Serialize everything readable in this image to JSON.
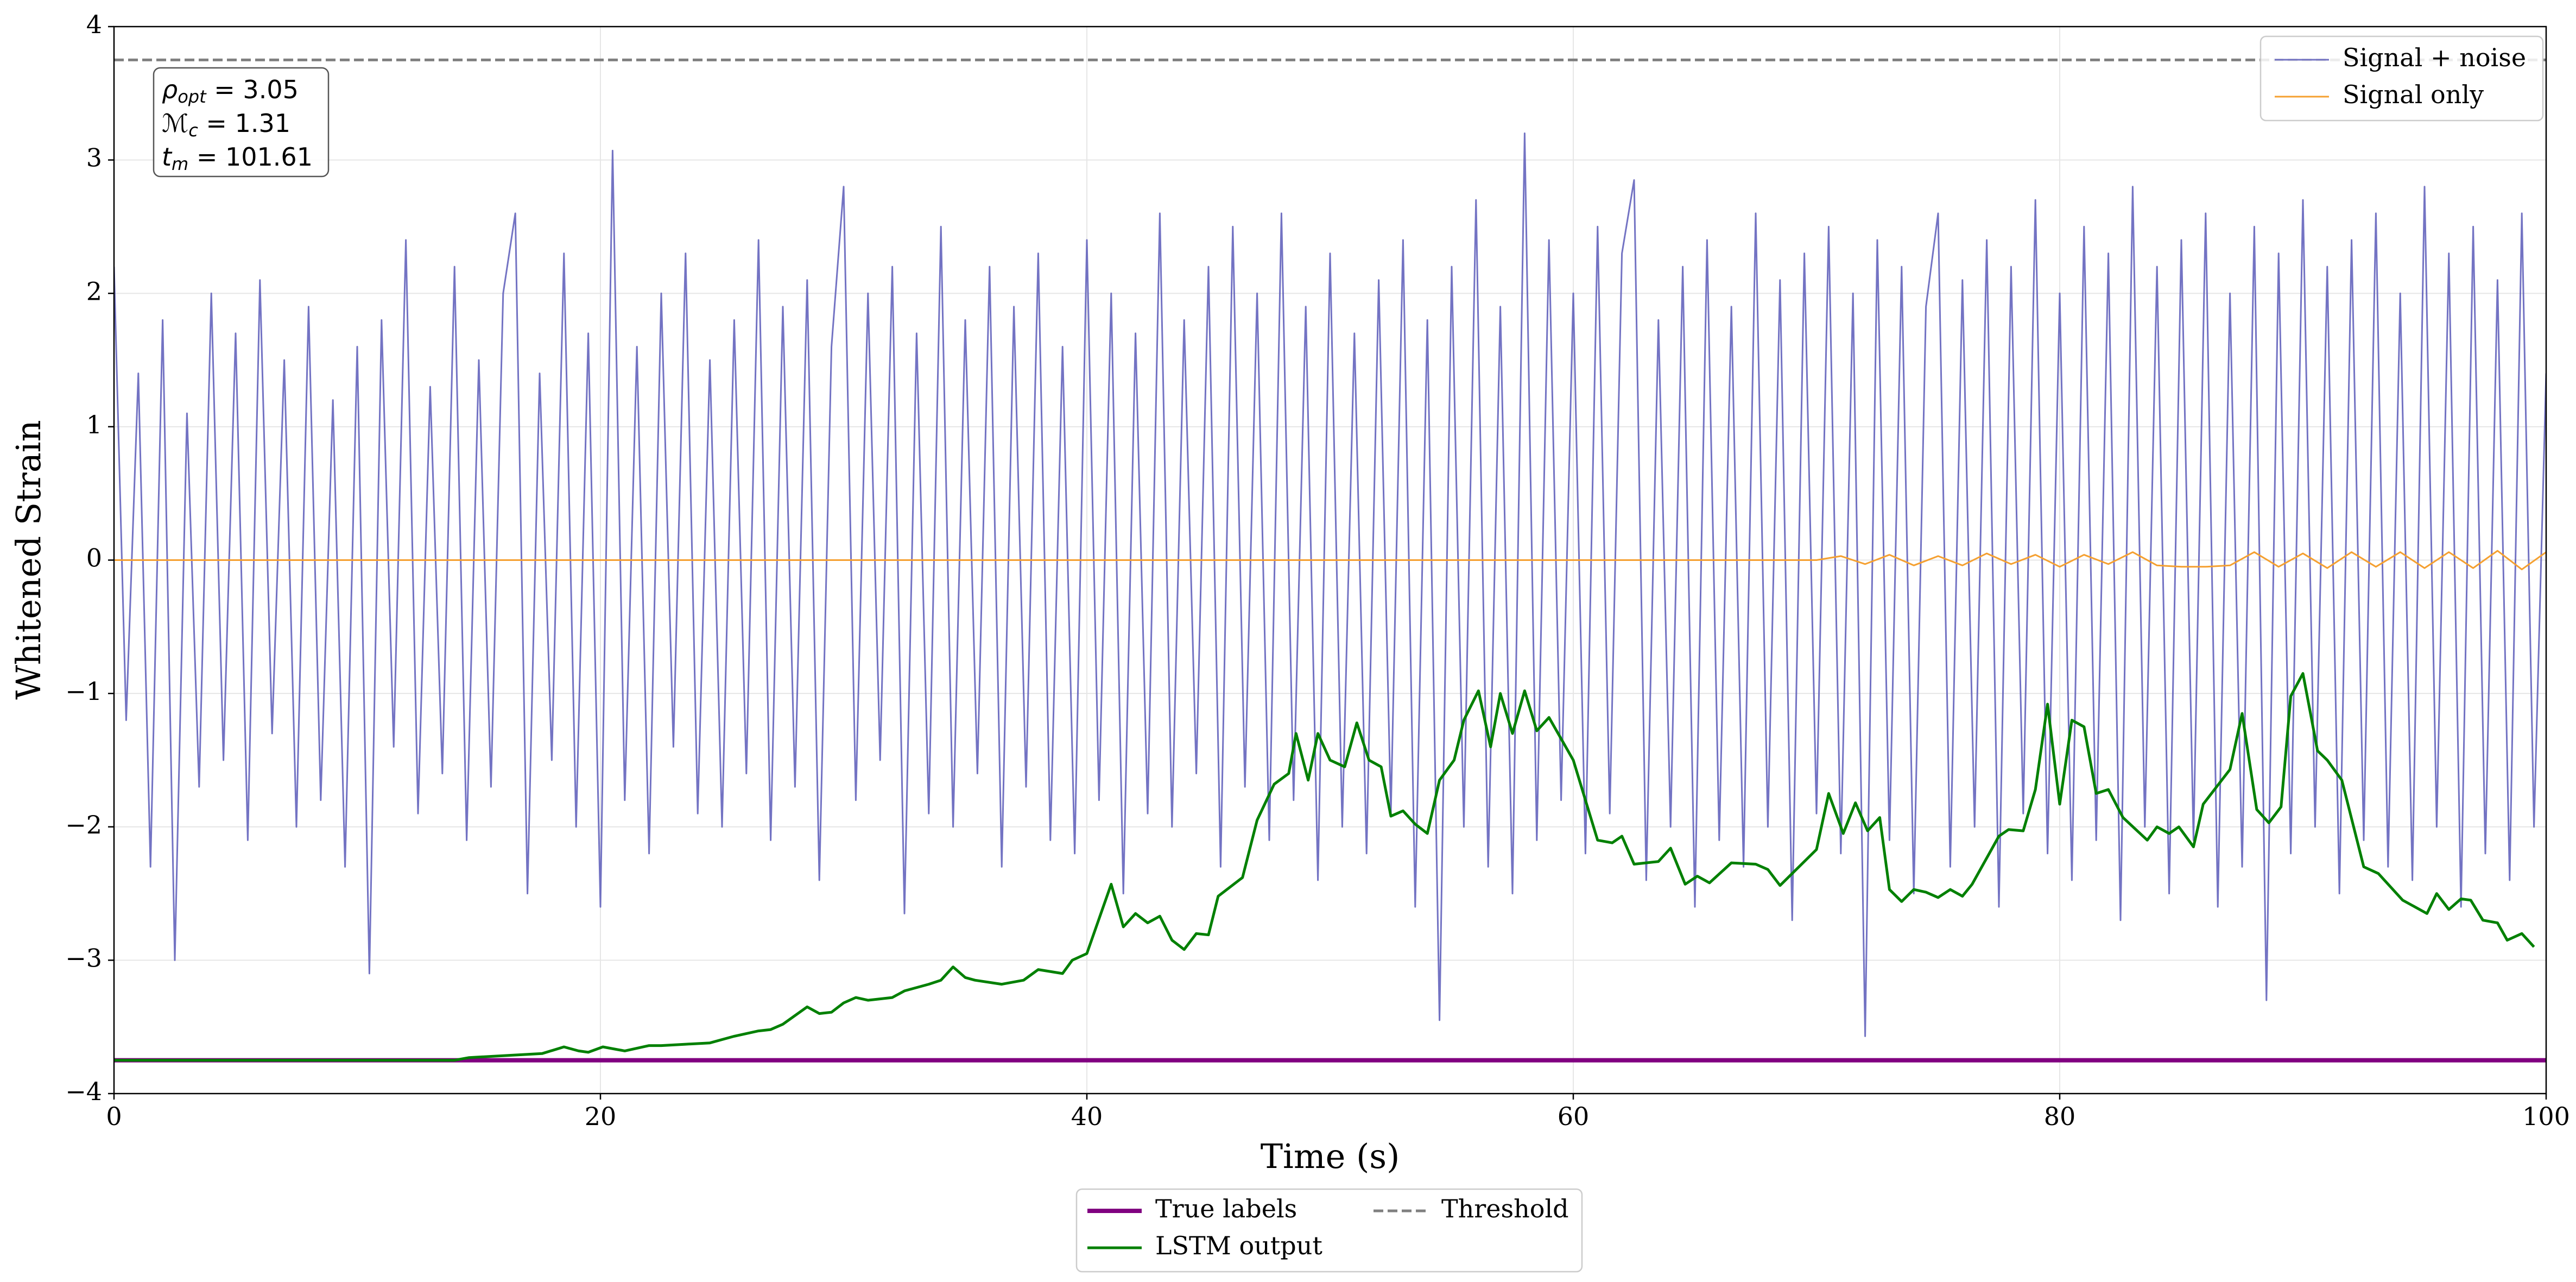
{
  "chart_data": {
    "type": "line",
    "xlabel": "Time (s)",
    "ylabel": "Whitened Strain",
    "xlim": [
      0,
      100
    ],
    "ylim": [
      -4,
      4
    ],
    "xticks": [
      0,
      20,
      40,
      60,
      80,
      100
    ],
    "yticks": [
      {
        "value": -4,
        "label": "−4"
      },
      {
        "value": -3,
        "label": "−3"
      },
      {
        "value": -2,
        "label": "−2"
      },
      {
        "value": -1,
        "label": "−1"
      },
      0,
      1,
      2,
      3,
      4
    ],
    "grid": true,
    "annotation": [
      {
        "symbol": "ρ",
        "subscript": "opt",
        "text": " = 3.05"
      },
      {
        "symbol": "ℳ",
        "subscript": "c",
        "text": " = 1.31"
      },
      {
        "symbol": "t",
        "subscript": "m",
        "text": " = 101.61"
      }
    ],
    "series": [
      {
        "name": "Signal + noise",
        "color": "#5a5ab8",
        "width": 3,
        "opacity": 0.85,
        "legend": "upper right",
        "x": [
          0,
          0.5,
          1,
          1.5,
          2,
          2.5,
          3,
          3.5,
          4,
          4.5,
          5,
          5.5,
          6,
          6.5,
          7,
          7.5,
          8,
          8.5,
          9,
          9.5,
          10,
          10.5,
          11,
          11.5,
          12,
          12.5,
          13,
          13.5,
          14,
          14.5,
          15,
          15.5,
          16,
          16.5,
          17,
          17.5,
          18,
          18.5,
          19,
          19.5,
          20,
          20.5,
          21,
          21.5,
          22,
          22.5,
          23,
          23.5,
          24,
          24.5,
          25,
          25.5,
          26,
          26.5,
          27,
          27.5,
          28,
          28.5,
          29,
          29.5,
          30,
          30.5,
          31,
          31.5,
          32,
          32.5,
          33,
          33.5,
          34,
          34.5,
          35,
          35.5,
          36,
          36.5,
          37,
          37.5,
          38,
          38.5,
          39,
          39.5,
          40,
          40.5,
          41,
          41.5,
          42,
          42.5,
          43,
          43.5,
          44,
          44.5,
          45,
          45.5,
          46,
          46.5,
          47,
          47.5,
          48,
          48.5,
          49,
          49.5,
          50,
          50.5,
          51,
          51.5,
          52,
          52.5,
          53,
          53.5,
          54,
          54.5,
          55,
          55.5,
          56,
          56.5,
          57,
          57.5,
          58,
          58.5,
          59,
          59.5,
          60,
          60.5,
          61,
          61.5,
          62,
          62.5,
          63,
          63.5,
          64,
          64.5,
          65,
          65.5,
          66,
          66.5,
          67,
          67.5,
          68,
          68.5,
          69,
          69.5,
          70,
          70.5,
          71,
          71.5,
          72,
          72.5,
          73,
          73.5,
          74,
          74.5,
          75,
          75.5,
          76,
          76.5,
          77,
          77.5,
          78,
          78.5,
          79,
          79.5,
          80,
          80.5,
          81,
          81.5,
          82,
          82.5,
          83,
          83.5,
          84,
          84.5,
          85,
          85.5,
          86,
          86.5,
          87,
          87.5,
          88,
          88.5,
          89,
          89.5,
          90,
          90.5,
          91,
          91.5,
          92,
          92.5,
          93,
          93.5,
          94,
          94.5,
          95,
          95.5,
          96,
          96.5,
          97,
          97.5,
          98,
          98.5,
          99,
          99.5,
          100
        ],
        "values": [
          2.2,
          -1.2,
          1.4,
          -2.3,
          1.8,
          -3.0,
          1.1,
          -1.7,
          2.0,
          -1.5,
          1.7,
          -2.1,
          2.1,
          -1.3,
          1.5,
          -2.0,
          1.9,
          -1.8,
          1.2,
          -2.3,
          1.6,
          -3.1,
          1.8,
          -1.4,
          2.4,
          -1.9,
          1.3,
          -1.6,
          2.2,
          -2.1,
          1.5,
          -1.7,
          2.0,
          2.6,
          -2.5,
          1.4,
          -1.5,
          2.3,
          -2.0,
          1.7,
          -2.6,
          3.07,
          -1.8,
          1.6,
          -2.2,
          2.0,
          -1.4,
          2.3,
          -1.9,
          1.5,
          -2.0,
          1.8,
          -1.6,
          2.4,
          -2.1,
          1.9,
          -1.7,
          2.1,
          -2.4,
          1.6,
          2.8,
          -1.8,
          2.0,
          -1.5,
          2.2,
          -2.65,
          1.7,
          -1.9,
          2.5,
          -2.0,
          1.8,
          -1.6,
          2.2,
          -2.3,
          1.9,
          -1.7,
          2.3,
          -2.1,
          1.6,
          -2.2,
          2.4,
          -1.8,
          2.0,
          -2.5,
          1.7,
          -1.9,
          2.6,
          -2.0,
          1.8,
          -1.6,
          2.2,
          -2.3,
          2.5,
          -1.7,
          2.0,
          -2.1,
          2.6,
          -1.8,
          1.9,
          -2.4,
          2.3,
          -2.0,
          1.7,
          -2.2,
          2.1,
          -1.9,
          2.4,
          -2.6,
          1.8,
          -3.45,
          2.2,
          -2.0,
          2.7,
          -2.3,
          1.9,
          -2.5,
          3.2,
          -2.1,
          2.4,
          -1.8,
          2.0,
          -2.2,
          2.5,
          -1.9,
          2.3,
          2.85,
          -2.4,
          1.8,
          -2.0,
          2.2,
          -2.6,
          2.4,
          -2.1,
          1.9,
          -2.3,
          2.6,
          -2.0,
          2.1,
          -2.7,
          2.3,
          -1.9,
          2.5,
          -2.2,
          2.0,
          -3.57,
          2.4,
          -2.1,
          2.2,
          -2.5,
          1.9,
          2.6,
          -2.3,
          2.1,
          -2.0,
          2.4,
          -2.6,
          2.2,
          -1.9,
          2.7,
          -2.2,
          2.0,
          -2.4,
          2.5,
          -2.1,
          2.3,
          -2.7,
          2.8,
          -2.0,
          2.2,
          -2.5,
          2.4,
          -2.1,
          2.6,
          -2.6,
          2.0,
          -2.3,
          2.5,
          -3.3,
          2.3,
          -2.2,
          2.7,
          -2.0,
          2.2,
          -2.5,
          2.4,
          -2.1,
          2.6,
          -2.3,
          2.0,
          -2.4,
          2.8,
          -2.0,
          2.3,
          -2.6,
          2.5,
          -2.2,
          2.1,
          -2.4,
          2.6,
          -2.0,
          1.4
        ]
      },
      {
        "name": "Signal only",
        "color": "#f5a030",
        "width": 3,
        "opacity": 1,
        "legend": "upper right",
        "x": [
          0,
          10,
          20,
          30,
          40,
          50,
          60,
          70,
          71,
          72,
          73,
          74,
          75,
          76,
          77,
          78,
          79,
          80,
          81,
          82,
          83,
          84,
          85,
          86,
          87,
          88,
          89,
          90,
          91,
          92,
          93,
          94,
          95,
          96,
          97,
          98,
          99,
          100
        ],
        "values": [
          0,
          0,
          0,
          0,
          0,
          0,
          0,
          0,
          0.03,
          -0.03,
          0.04,
          -0.04,
          0.03,
          -0.04,
          0.05,
          -0.03,
          0.04,
          -0.05,
          0.04,
          -0.03,
          0.06,
          -0.04,
          -0.05,
          -0.05,
          -0.04,
          0.06,
          -0.05,
          0.05,
          -0.06,
          0.06,
          -0.05,
          0.06,
          -0.06,
          0.06,
          -0.06,
          0.07,
          -0.07,
          0.06
        ]
      },
      {
        "name": "True labels",
        "color": "#800080",
        "width": 8,
        "opacity": 1,
        "legend": "lower center",
        "x": [
          0,
          100
        ],
        "values": [
          -3.75,
          -3.75
        ]
      },
      {
        "name": "LSTM output",
        "color": "#008000",
        "width": 5,
        "opacity": 1,
        "legend": "lower center",
        "x": [
          0,
          14,
          14.6,
          16.6,
          17.6,
          18.5,
          19.1,
          19.5,
          20.1,
          21,
          22,
          22.5,
          23.5,
          24.5,
          25.5,
          26.5,
          27,
          27.5,
          28.5,
          29,
          29.5,
          30,
          30.5,
          31,
          32,
          32.5,
          33.5,
          34,
          34.5,
          35,
          35.4,
          36.5,
          37.4,
          38,
          39,
          39.4,
          40,
          41,
          41.5,
          42,
          42.5,
          43,
          43.5,
          44,
          44.5,
          45,
          45.4,
          46.4,
          47,
          47.7,
          48.3,
          48.6,
          49.1,
          49.5,
          50,
          50.6,
          51.1,
          51.6,
          52.1,
          52.5,
          53,
          53.5,
          54,
          54.5,
          55.1,
          55.5,
          56.1,
          56.6,
          57,
          57.5,
          58,
          58.5,
          59,
          60,
          61,
          61.6,
          62,
          62.5,
          63.5,
          64,
          64.6,
          65.1,
          65.6,
          66.5,
          67.5,
          68,
          68.5,
          69,
          70,
          70.5,
          71.1,
          71.6,
          72.1,
          72.6,
          73,
          73.5,
          74,
          74.5,
          75,
          75.5,
          76,
          76.4,
          77.5,
          77.9,
          78.5,
          79,
          79.5,
          80,
          80.5,
          81,
          81.5,
          82,
          82.6,
          83.6,
          84,
          84.5,
          84.9,
          85.5,
          85.9,
          87,
          87.5,
          88.1,
          88.6,
          89.1,
          89.5,
          90,
          90.6,
          91,
          91.6,
          92.5,
          93.1,
          94.1,
          95.1,
          95.5,
          96,
          96.5,
          96.9,
          97.4,
          98,
          98.4,
          99,
          99.5
        ],
        "values": [
          -3.75,
          -3.75,
          -3.73,
          -3.71,
          -3.7,
          -3.65,
          -3.68,
          -3.69,
          -3.65,
          -3.68,
          -3.64,
          -3.64,
          -3.63,
          -3.62,
          -3.57,
          -3.53,
          -3.52,
          -3.48,
          -3.35,
          -3.4,
          -3.39,
          -3.32,
          -3.28,
          -3.3,
          -3.28,
          -3.23,
          -3.18,
          -3.15,
          -3.05,
          -3.13,
          -3.15,
          -3.18,
          -3.15,
          -3.07,
          -3.1,
          -3.0,
          -2.95,
          -2.43,
          -2.75,
          -2.65,
          -2.72,
          -2.67,
          -2.85,
          -2.92,
          -2.8,
          -2.81,
          -2.52,
          -2.38,
          -1.95,
          -1.68,
          -1.6,
          -1.3,
          -1.65,
          -1.3,
          -1.5,
          -1.55,
          -1.22,
          -1.5,
          -1.55,
          -1.92,
          -1.88,
          -1.98,
          -2.05,
          -1.65,
          -1.5,
          -1.2,
          -0.98,
          -1.4,
          -1.0,
          -1.3,
          -0.98,
          -1.28,
          -1.18,
          -1.5,
          -2.1,
          -2.12,
          -2.07,
          -2.28,
          -2.26,
          -2.16,
          -2.43,
          -2.37,
          -2.42,
          -2.27,
          -2.28,
          -2.32,
          -2.44,
          -2.35,
          -2.17,
          -1.75,
          -2.05,
          -1.82,
          -2.03,
          -1.93,
          -2.47,
          -2.56,
          -2.47,
          -2.49,
          -2.53,
          -2.47,
          -2.52,
          -2.43,
          -2.07,
          -2.02,
          -2.03,
          -1.72,
          -1.08,
          -1.83,
          -1.2,
          -1.25,
          -1.75,
          -1.72,
          -1.93,
          -2.1,
          -2.0,
          -2.05,
          -2.0,
          -2.15,
          -1.83,
          -1.57,
          -1.15,
          -1.87,
          -1.97,
          -1.85,
          -1.02,
          -0.85,
          -1.43,
          -1.5,
          -1.65,
          -2.3,
          -2.35,
          -2.55,
          -2.65,
          -2.5,
          -2.62,
          -2.54,
          -2.55,
          -2.7,
          -2.72,
          -2.85,
          -2.8,
          -2.9
        ]
      },
      {
        "name": "Threshold",
        "color": "#808080",
        "width": 5,
        "opacity": 1,
        "dash": true,
        "legend": "lower center",
        "x": [
          0,
          100
        ],
        "values": [
          3.75,
          3.75
        ]
      }
    ]
  }
}
